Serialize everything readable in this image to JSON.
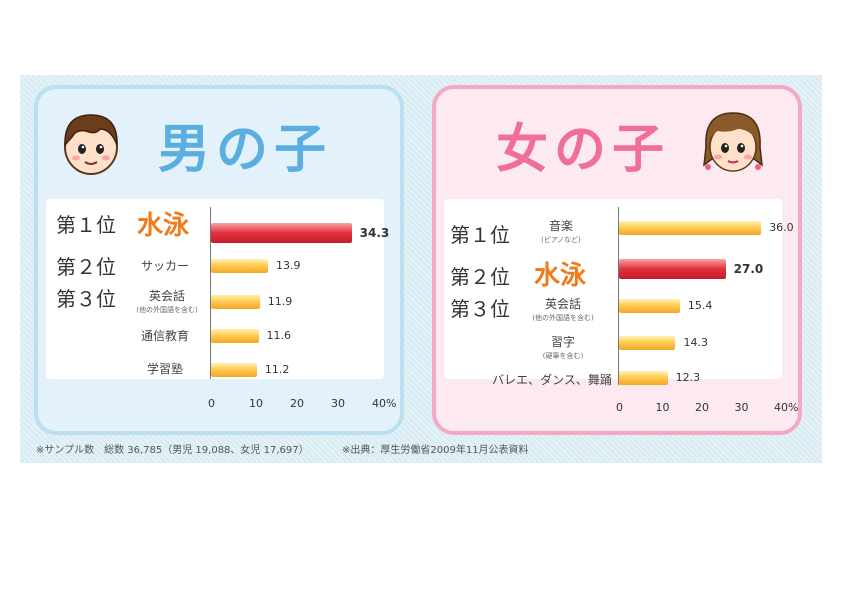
{
  "chart_data": [
    {
      "type": "bar",
      "title": "男の子",
      "orientation": "horizontal",
      "ranks": [
        "第１位",
        "第２位",
        "第３位"
      ],
      "categories": [
        "水泳",
        "サッカー",
        "英会話",
        "通信教育",
        "学習塾"
      ],
      "subcategories": [
        "",
        "",
        "(他の外国語を含む)",
        "",
        ""
      ],
      "values": [
        34.3,
        13.9,
        11.9,
        11.6,
        11.2
      ],
      "value_labels": [
        "34.3",
        "13.9",
        "11.9",
        "11.6",
        "11.2"
      ],
      "highlight_index": 0,
      "xlim": [
        0,
        40
      ],
      "xticks": [
        "0",
        "10",
        "20",
        "30",
        "40%"
      ],
      "colors": {
        "normal": "#f5a623",
        "highlight": "#d92633"
      }
    },
    {
      "type": "bar",
      "title": "女の子",
      "orientation": "horizontal",
      "ranks": [
        "第１位",
        "第２位",
        "第３位"
      ],
      "categories": [
        "音楽",
        "水泳",
        "英会話",
        "習字",
        "バレエ、ダンス、舞踊"
      ],
      "subcategories": [
        "(ピアノなど)",
        "",
        "(他の外国語を含む)",
        "(硬筆を含む)",
        ""
      ],
      "values": [
        36.0,
        27.0,
        15.4,
        14.3,
        12.3
      ],
      "value_labels": [
        "36.0",
        "27.0",
        "15.4",
        "14.3",
        "12.3"
      ],
      "highlight_index": 1,
      "xlim": [
        0,
        40
      ],
      "xticks": [
        "0",
        "10",
        "20",
        "30",
        "40%"
      ],
      "colors": {
        "normal": "#f5a623",
        "highlight": "#d92633"
      }
    }
  ],
  "footer": {
    "sample": "※サンプル数　総数 36,785（男児 19,088、女児 17,697）",
    "source": "※出典：厚生労働省2009年11月公表資料"
  },
  "colors": {
    "boy_title": "#5aaee0",
    "girl_title": "#ef6f9a",
    "orange_text": "#f07a1a"
  },
  "icons": {
    "boy": "boy-face-icon",
    "girl": "girl-face-icon"
  }
}
